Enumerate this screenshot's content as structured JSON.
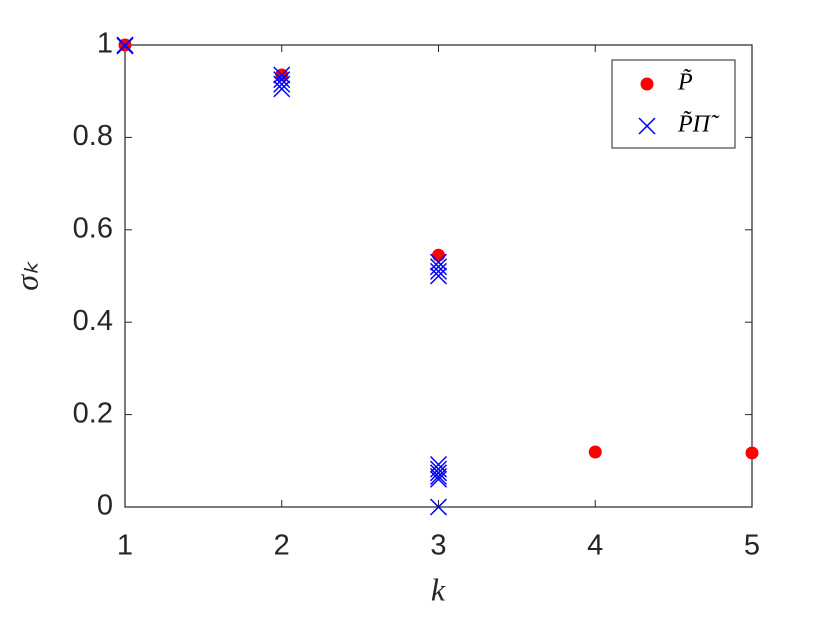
{
  "chart_data": {
    "type": "scatter",
    "xlabel": "k",
    "ylabel": "σₖ",
    "xlim": [
      1,
      5
    ],
    "ylim": [
      0,
      1
    ],
    "xticks": [
      1,
      2,
      3,
      4,
      5
    ],
    "yticks": [
      0,
      0.2,
      0.4,
      0.6,
      0.8,
      1
    ],
    "grid": false,
    "legend": "upper right",
    "series": [
      {
        "name": "P̃",
        "color": "#ff0000",
        "marker": "o",
        "x": [
          1,
          2,
          3,
          4,
          5
        ],
        "values": [
          1,
          0.935,
          0.545,
          0.119,
          0.117
        ]
      },
      {
        "name": "P̃Π̃",
        "color": "#0000ff",
        "marker": "x",
        "x": [
          1,
          1,
          2,
          2,
          2,
          2,
          3,
          3,
          3,
          3,
          3,
          3,
          3,
          3,
          3,
          3
        ],
        "values": [
          1,
          0.998,
          0.935,
          0.925,
          0.915,
          0.905,
          0.53,
          0.52,
          0.51,
          0.5,
          0.092,
          0.082,
          0.074,
          0.066,
          0.06,
          0
        ]
      }
    ]
  }
}
